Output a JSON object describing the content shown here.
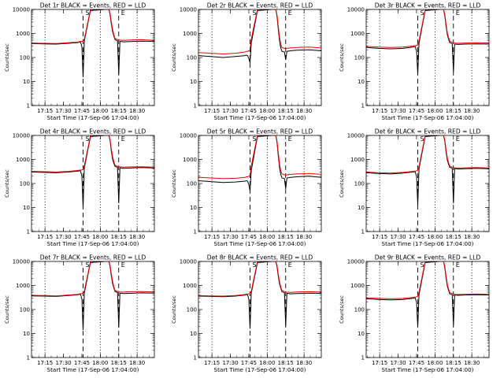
{
  "colors": {
    "background": "#ffffff",
    "events": "#000000",
    "lld": "#ff0000",
    "axes": "#000000"
  },
  "chart_data": [
    {
      "type": "line",
      "title": "Det 1r BLACK = Events, RED = LLD",
      "xlabel": "Start Time (17-Sep-06 17:04:00)",
      "ylabel": "Counts/sec",
      "xticks": [
        "17:15",
        "17:30",
        "17:45",
        "18:00",
        "18:15",
        "18:30"
      ],
      "yticks": [
        "1",
        "10",
        "100",
        "1000",
        "10000"
      ],
      "yscale": "log",
      "ylim": [
        1,
        10000
      ],
      "xlim_minutes": [
        0,
        100
      ],
      "marker_labels": [
        "S",
        "E"
      ],
      "dotted_lines_min": [
        11,
        56,
        86
      ],
      "dashed_lines_min": [
        42,
        71
      ],
      "x_min": [
        0,
        10,
        20,
        30,
        38,
        39,
        40,
        41,
        42,
        43,
        48,
        60,
        63,
        64,
        65,
        66,
        67,
        68,
        70,
        71,
        72,
        75,
        80,
        90,
        100
      ],
      "series": [
        {
          "name": "BLACK = Events",
          "values": [
            380,
            370,
            360,
            390,
            420,
            440,
            430,
            280,
            15,
            500,
            9000,
            10000,
            10000,
            6000,
            2500,
            1200,
            800,
            550,
            500,
            20,
            470,
            450,
            460,
            480,
            470
          ]
        },
        {
          "name": "RED = LLD",
          "values": [
            400,
            390,
            380,
            410,
            440,
            460,
            460,
            470,
            470,
            600,
            10000,
            10000,
            10000,
            7000,
            3000,
            1500,
            900,
            620,
            560,
            540,
            530,
            520,
            540,
            550,
            520
          ]
        }
      ]
    },
    {
      "type": "line",
      "title": "Det 2r BLACK = Events, RED = LLD",
      "xlabel": "Start Time (17-Sep-06 17:04:00)",
      "ylabel": "Counts/sec",
      "xticks": [
        "17:15",
        "17:30",
        "17:45",
        "18:00",
        "18:15",
        "18:30"
      ],
      "yticks": [
        "1",
        "10",
        "100",
        "1000",
        "10000"
      ],
      "yscale": "log",
      "ylim": [
        1,
        10000
      ],
      "xlim_minutes": [
        0,
        100
      ],
      "marker_labels": [
        "S",
        "E"
      ],
      "dotted_lines_min": [
        11,
        56,
        86
      ],
      "dashed_lines_min": [
        42,
        71
      ],
      "x_min": [
        0,
        10,
        20,
        30,
        38,
        39,
        40,
        41,
        42,
        43,
        48,
        60,
        63,
        64,
        65,
        66,
        67,
        68,
        70,
        71,
        72,
        75,
        80,
        90,
        100
      ],
      "series": [
        {
          "name": "BLACK = Events",
          "values": [
            120,
            110,
            100,
            110,
            120,
            125,
            120,
            90,
            60,
            400,
            9000,
            10000,
            10000,
            5000,
            1500,
            500,
            250,
            180,
            170,
            80,
            180,
            190,
            200,
            210,
            190
          ]
        },
        {
          "name": "RED = LLD",
          "values": [
            160,
            150,
            140,
            150,
            170,
            180,
            180,
            190,
            200,
            600,
            10000,
            10000,
            10000,
            6000,
            2000,
            700,
            350,
            260,
            240,
            230,
            240,
            250,
            260,
            270,
            250
          ]
        }
      ]
    },
    {
      "type": "line",
      "title": "Det 3r BLACK = Events, RED = LLD",
      "xlabel": "Start Time (17-Sep-06 17:04:00)",
      "ylabel": "Counts/sec",
      "xticks": [
        "17:15",
        "17:30",
        "17:45",
        "18:00",
        "18:15",
        "18:30"
      ],
      "yticks": [
        "1",
        "10",
        "100",
        "1000",
        "10000"
      ],
      "yscale": "log",
      "ylim": [
        1,
        10000
      ],
      "xlim_minutes": [
        0,
        100
      ],
      "marker_labels": [
        "S",
        "E"
      ],
      "dotted_lines_min": [
        11,
        56,
        86
      ],
      "dashed_lines_min": [
        42,
        71
      ],
      "x_min": [
        0,
        10,
        20,
        30,
        38,
        39,
        40,
        41,
        42,
        43,
        48,
        60,
        63,
        64,
        65,
        66,
        67,
        68,
        70,
        71,
        72,
        75,
        80,
        90,
        100
      ],
      "series": [
        {
          "name": "BLACK = Events",
          "values": [
            260,
            240,
            230,
            240,
            270,
            280,
            280,
            180,
            20,
            400,
            9000,
            10000,
            10000,
            5500,
            2000,
            900,
            600,
            420,
            380,
            25,
            360,
            350,
            360,
            370,
            360
          ]
        },
        {
          "name": "RED = LLD",
          "values": [
            290,
            270,
            260,
            270,
            300,
            310,
            310,
            320,
            330,
            500,
            10000,
            10000,
            10000,
            6500,
            2500,
            1100,
            700,
            480,
            430,
            410,
            400,
            390,
            400,
            410,
            400
          ]
        }
      ]
    },
    {
      "type": "line",
      "title": "Det 4r BLACK = Events, RED = LLD",
      "xlabel": "Start Time (17-Sep-06 17:04:00)",
      "ylabel": "Counts/sec",
      "xticks": [
        "17:15",
        "17:30",
        "17:45",
        "18:00",
        "18:15",
        "18:30"
      ],
      "yticks": [
        "1",
        "10",
        "100",
        "1000",
        "10000"
      ],
      "yscale": "log",
      "ylim": [
        1,
        10000
      ],
      "xlim_minutes": [
        0,
        100
      ],
      "marker_labels": [
        "S",
        "E"
      ],
      "dotted_lines_min": [
        11,
        56,
        86
      ],
      "dashed_lines_min": [
        42,
        71
      ],
      "x_min": [
        0,
        10,
        20,
        30,
        38,
        39,
        40,
        41,
        42,
        43,
        48,
        60,
        63,
        64,
        65,
        66,
        67,
        68,
        70,
        71,
        72,
        75,
        80,
        90,
        100
      ],
      "series": [
        {
          "name": "BLACK = Events",
          "values": [
            300,
            290,
            280,
            300,
            330,
            340,
            330,
            200,
            10,
            450,
            9000,
            10000,
            10000,
            6000,
            2200,
            1000,
            700,
            520,
            470,
            15,
            450,
            430,
            440,
            460,
            440
          ]
        },
        {
          "name": "RED = LLD",
          "values": [
            320,
            310,
            300,
            320,
            350,
            360,
            360,
            370,
            380,
            560,
            10000,
            10000,
            10000,
            7000,
            2800,
            1300,
            820,
            580,
            520,
            500,
            490,
            480,
            490,
            500,
            480
          ]
        }
      ]
    },
    {
      "type": "line",
      "title": "Det 5r BLACK = Events, RED = LLD",
      "xlabel": "Start Time (17-Sep-06 17:04:00)",
      "ylabel": "Counts/sec",
      "xticks": [
        "17:15",
        "17:30",
        "17:45",
        "18:00",
        "18:15",
        "18:30"
      ],
      "yticks": [
        "1",
        "10",
        "100",
        "1000",
        "10000"
      ],
      "yscale": "log",
      "ylim": [
        1,
        10000
      ],
      "xlim_minutes": [
        0,
        100
      ],
      "marker_labels": [
        "S",
        "E"
      ],
      "dotted_lines_min": [
        11,
        56,
        86
      ],
      "dashed_lines_min": [
        42,
        71
      ],
      "x_min": [
        0,
        10,
        20,
        30,
        38,
        39,
        40,
        41,
        42,
        43,
        48,
        60,
        63,
        64,
        65,
        66,
        67,
        68,
        70,
        71,
        72,
        75,
        80,
        90,
        100
      ],
      "series": [
        {
          "name": "BLACK = Events",
          "values": [
            130,
            120,
            110,
            115,
            125,
            130,
            125,
            90,
            50,
            350,
            9000,
            10000,
            10000,
            5000,
            1400,
            450,
            240,
            170,
            160,
            60,
            170,
            180,
            190,
            200,
            180
          ]
        },
        {
          "name": "RED = LLD",
          "values": [
            180,
            170,
            160,
            165,
            180,
            190,
            190,
            200,
            210,
            550,
            10000,
            10000,
            10000,
            6000,
            1900,
            650,
            330,
            250,
            230,
            220,
            230,
            240,
            250,
            260,
            240
          ]
        }
      ]
    },
    {
      "type": "line",
      "title": "Det 6r BLACK = Events, RED = LLD",
      "xlabel": "Start Time (17-Sep-06 17:04:00)",
      "ylabel": "Counts/sec",
      "xticks": [
        "17:15",
        "17:30",
        "17:45",
        "18:00",
        "18:15",
        "18:30"
      ],
      "yticks": [
        "1",
        "10",
        "100",
        "1000",
        "10000"
      ],
      "yscale": "log",
      "ylim": [
        1,
        10000
      ],
      "xlim_minutes": [
        0,
        100
      ],
      "marker_labels": [
        "S",
        "E"
      ],
      "dotted_lines_min": [
        11,
        56,
        86
      ],
      "dashed_lines_min": [
        42,
        71
      ],
      "x_min": [
        0,
        10,
        20,
        30,
        38,
        39,
        40,
        41,
        42,
        43,
        48,
        60,
        63,
        64,
        65,
        66,
        67,
        68,
        70,
        71,
        72,
        75,
        80,
        90,
        100
      ],
      "series": [
        {
          "name": "BLACK = Events",
          "values": [
            280,
            260,
            250,
            270,
            300,
            310,
            300,
            190,
            12,
            420,
            9000,
            10000,
            10000,
            5800,
            2100,
            950,
            650,
            470,
            430,
            15,
            420,
            400,
            410,
            430,
            410
          ]
        },
        {
          "name": "RED = LLD",
          "values": [
            300,
            280,
            270,
            290,
            320,
            330,
            330,
            340,
            350,
            520,
            10000,
            10000,
            10000,
            6800,
            2600,
            1200,
            760,
            530,
            480,
            460,
            450,
            440,
            450,
            460,
            440
          ]
        }
      ]
    },
    {
      "type": "line",
      "title": "Det 7r BLACK = Events, RED = LLD",
      "xlabel": "Start Time (17-Sep-06 17:04:00)",
      "ylabel": "Counts/sec",
      "xticks": [
        "17:15",
        "17:30",
        "17:45",
        "18:00",
        "18:15",
        "18:30"
      ],
      "yticks": [
        "1",
        "10",
        "100",
        "1000",
        "10000"
      ],
      "yscale": "log",
      "ylim": [
        1,
        10000
      ],
      "xlim_minutes": [
        0,
        100
      ],
      "marker_labels": [
        "S",
        "E"
      ],
      "dotted_lines_min": [
        11,
        56,
        86
      ],
      "dashed_lines_min": [
        42,
        71
      ],
      "x_min": [
        0,
        10,
        20,
        30,
        38,
        39,
        40,
        41,
        42,
        43,
        48,
        60,
        63,
        64,
        65,
        66,
        67,
        68,
        70,
        71,
        72,
        75,
        80,
        90,
        100
      ],
      "series": [
        {
          "name": "BLACK = Events",
          "values": [
            370,
            360,
            350,
            380,
            410,
            430,
            420,
            270,
            14,
            490,
            9000,
            10000,
            10000,
            6000,
            2500,
            1200,
            800,
            560,
            510,
            18,
            480,
            460,
            470,
            490,
            480
          ]
        },
        {
          "name": "RED = LLD",
          "values": [
            390,
            380,
            370,
            400,
            430,
            450,
            450,
            460,
            470,
            600,
            10000,
            10000,
            10000,
            7000,
            3000,
            1500,
            900,
            630,
            570,
            550,
            540,
            530,
            550,
            560,
            540
          ]
        }
      ]
    },
    {
      "type": "line",
      "title": "Det 8r BLACK = Events, RED = LLD",
      "xlabel": "Start Time (17-Sep-06 17:04:00)",
      "ylabel": "Counts/sec",
      "xticks": [
        "17:15",
        "17:30",
        "17:45",
        "18:00",
        "18:15",
        "18:30"
      ],
      "yticks": [
        "1",
        "10",
        "100",
        "1000",
        "10000"
      ],
      "yscale": "log",
      "ylim": [
        1,
        10000
      ],
      "xlim_minutes": [
        0,
        100
      ],
      "marker_labels": [
        "S",
        "E"
      ],
      "dotted_lines_min": [
        11,
        56,
        86
      ],
      "dashed_lines_min": [
        42,
        71
      ],
      "x_min": [
        0,
        10,
        20,
        30,
        38,
        39,
        40,
        41,
        42,
        43,
        48,
        60,
        63,
        64,
        65,
        66,
        67,
        68,
        70,
        71,
        72,
        75,
        80,
        90,
        100
      ],
      "series": [
        {
          "name": "BLACK = Events",
          "values": [
            360,
            350,
            340,
            360,
            400,
            420,
            410,
            260,
            16,
            480,
            9000,
            10000,
            10000,
            5900,
            2400,
            1150,
            780,
            550,
            500,
            20,
            470,
            450,
            460,
            480,
            470
          ]
        },
        {
          "name": "RED = LLD",
          "values": [
            380,
            370,
            360,
            380,
            420,
            440,
            440,
            450,
            460,
            590,
            10000,
            10000,
            10000,
            6900,
            2900,
            1450,
            880,
            620,
            560,
            540,
            530,
            520,
            540,
            550,
            530
          ]
        }
      ]
    },
    {
      "type": "line",
      "title": "Det 9r BLACK = Events, RED = LLD",
      "xlabel": "Start Time (17-Sep-06 17:04:00)",
      "ylabel": "Counts/sec",
      "xticks": [
        "17:15",
        "17:30",
        "17:45",
        "18:00",
        "18:15",
        "18:30"
      ],
      "yticks": [
        "1",
        "10",
        "100",
        "1000",
        "10000"
      ],
      "yscale": "log",
      "ylim": [
        1,
        10000
      ],
      "xlim_minutes": [
        0,
        100
      ],
      "marker_labels": [
        "S",
        "E"
      ],
      "dotted_lines_min": [
        11,
        56,
        86
      ],
      "dashed_lines_min": [
        42,
        71
      ],
      "x_min": [
        0,
        10,
        20,
        30,
        38,
        39,
        40,
        41,
        42,
        43,
        48,
        60,
        63,
        64,
        65,
        66,
        67,
        68,
        70,
        71,
        72,
        75,
        80,
        90,
        100
      ],
      "series": [
        {
          "name": "BLACK = Events",
          "values": [
            280,
            260,
            250,
            260,
            290,
            300,
            300,
            190,
            18,
            420,
            9000,
            10000,
            10000,
            5600,
            2100,
            950,
            640,
            450,
            410,
            22,
            400,
            390,
            400,
            410,
            400
          ]
        },
        {
          "name": "RED = LLD",
          "values": [
            310,
            290,
            280,
            290,
            320,
            330,
            330,
            340,
            350,
            530,
            10000,
            10000,
            10000,
            6600,
            2600,
            1150,
            740,
            510,
            460,
            440,
            430,
            420,
            430,
            440,
            430
          ]
        }
      ]
    }
  ]
}
